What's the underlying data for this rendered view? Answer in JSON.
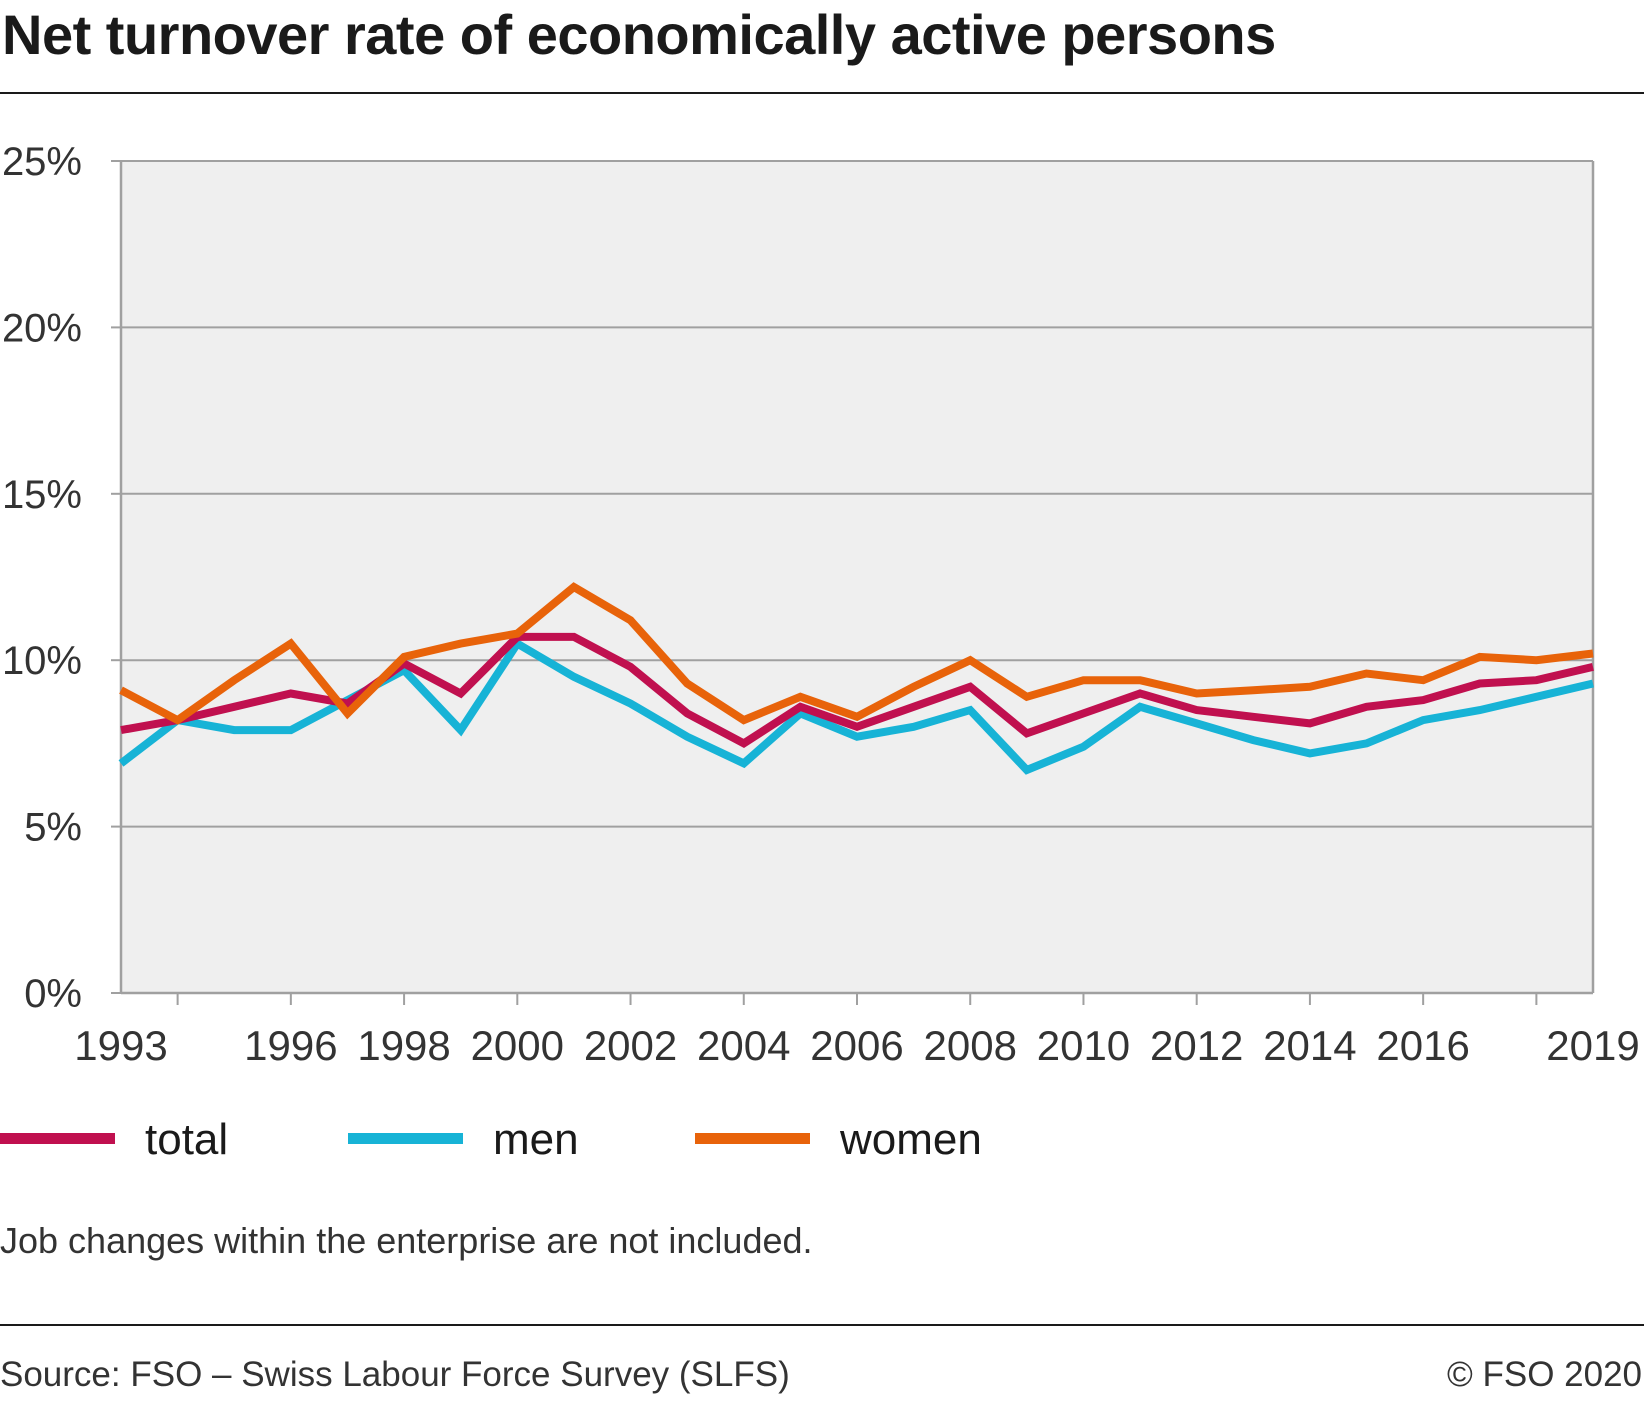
{
  "title": "Net turnover rate of economically active persons",
  "note": "Job changes within the enterprise are not included.",
  "source": "Source: FSO – Swiss Labour Force Survey (SLFS)",
  "copyright": "© FSO 2020",
  "colors": {
    "total": "#c0104f",
    "men": "#17b3d6",
    "women": "#e8630a",
    "plot_background": "#efefef",
    "grid": "#a0a0a0"
  },
  "chart_data": {
    "type": "line",
    "title": "Net turnover rate of economically active persons",
    "xlabel": "",
    "ylabel": "",
    "x": [
      1993,
      1994,
      1995,
      1996,
      1997,
      1998,
      1999,
      2000,
      2001,
      2002,
      2003,
      2004,
      2005,
      2006,
      2007,
      2008,
      2009,
      2010,
      2011,
      2012,
      2013,
      2014,
      2015,
      2016,
      2017,
      2018,
      2019
    ],
    "x_tick_labels": [
      "1993",
      "1996",
      "1998",
      "2000",
      "2002",
      "2004",
      "2006",
      "2008",
      "2010",
      "2012",
      "2014",
      "2016",
      "2019"
    ],
    "y_tick_labels": [
      "0%",
      "5%",
      "10%",
      "15%",
      "20%",
      "25%"
    ],
    "y_ticks": [
      0,
      5,
      10,
      15,
      20,
      25
    ],
    "ylim": [
      0,
      25
    ],
    "xlim": [
      1993,
      2019
    ],
    "y_unit": "%",
    "grid": true,
    "legend_position": "bottom",
    "series": [
      {
        "key": "total",
        "name": "total",
        "color": "#c0104f",
        "values": [
          7.9,
          8.2,
          8.6,
          9.0,
          8.7,
          9.9,
          9.0,
          10.7,
          10.7,
          9.8,
          8.4,
          7.5,
          8.6,
          8.0,
          8.6,
          9.2,
          7.8,
          8.4,
          9.0,
          8.5,
          8.3,
          8.1,
          8.6,
          8.8,
          9.3,
          9.4,
          9.8
        ]
      },
      {
        "key": "men",
        "name": "men",
        "color": "#17b3d6",
        "values": [
          6.9,
          8.2,
          7.9,
          7.9,
          8.8,
          9.7,
          7.9,
          10.5,
          9.5,
          8.7,
          7.7,
          6.9,
          8.4,
          7.7,
          8.0,
          8.5,
          6.7,
          7.4,
          8.6,
          8.1,
          7.6,
          7.2,
          7.5,
          8.2,
          8.5,
          8.9,
          9.3
        ]
      },
      {
        "key": "women",
        "name": "women",
        "color": "#e8630a",
        "values": [
          9.1,
          8.2,
          9.4,
          10.5,
          8.4,
          10.1,
          10.5,
          10.8,
          12.2,
          11.2,
          9.3,
          8.2,
          8.9,
          8.3,
          9.2,
          10.0,
          8.9,
          9.4,
          9.4,
          9.0,
          9.1,
          9.2,
          9.6,
          9.4,
          10.1,
          10.0,
          10.2
        ]
      }
    ]
  }
}
